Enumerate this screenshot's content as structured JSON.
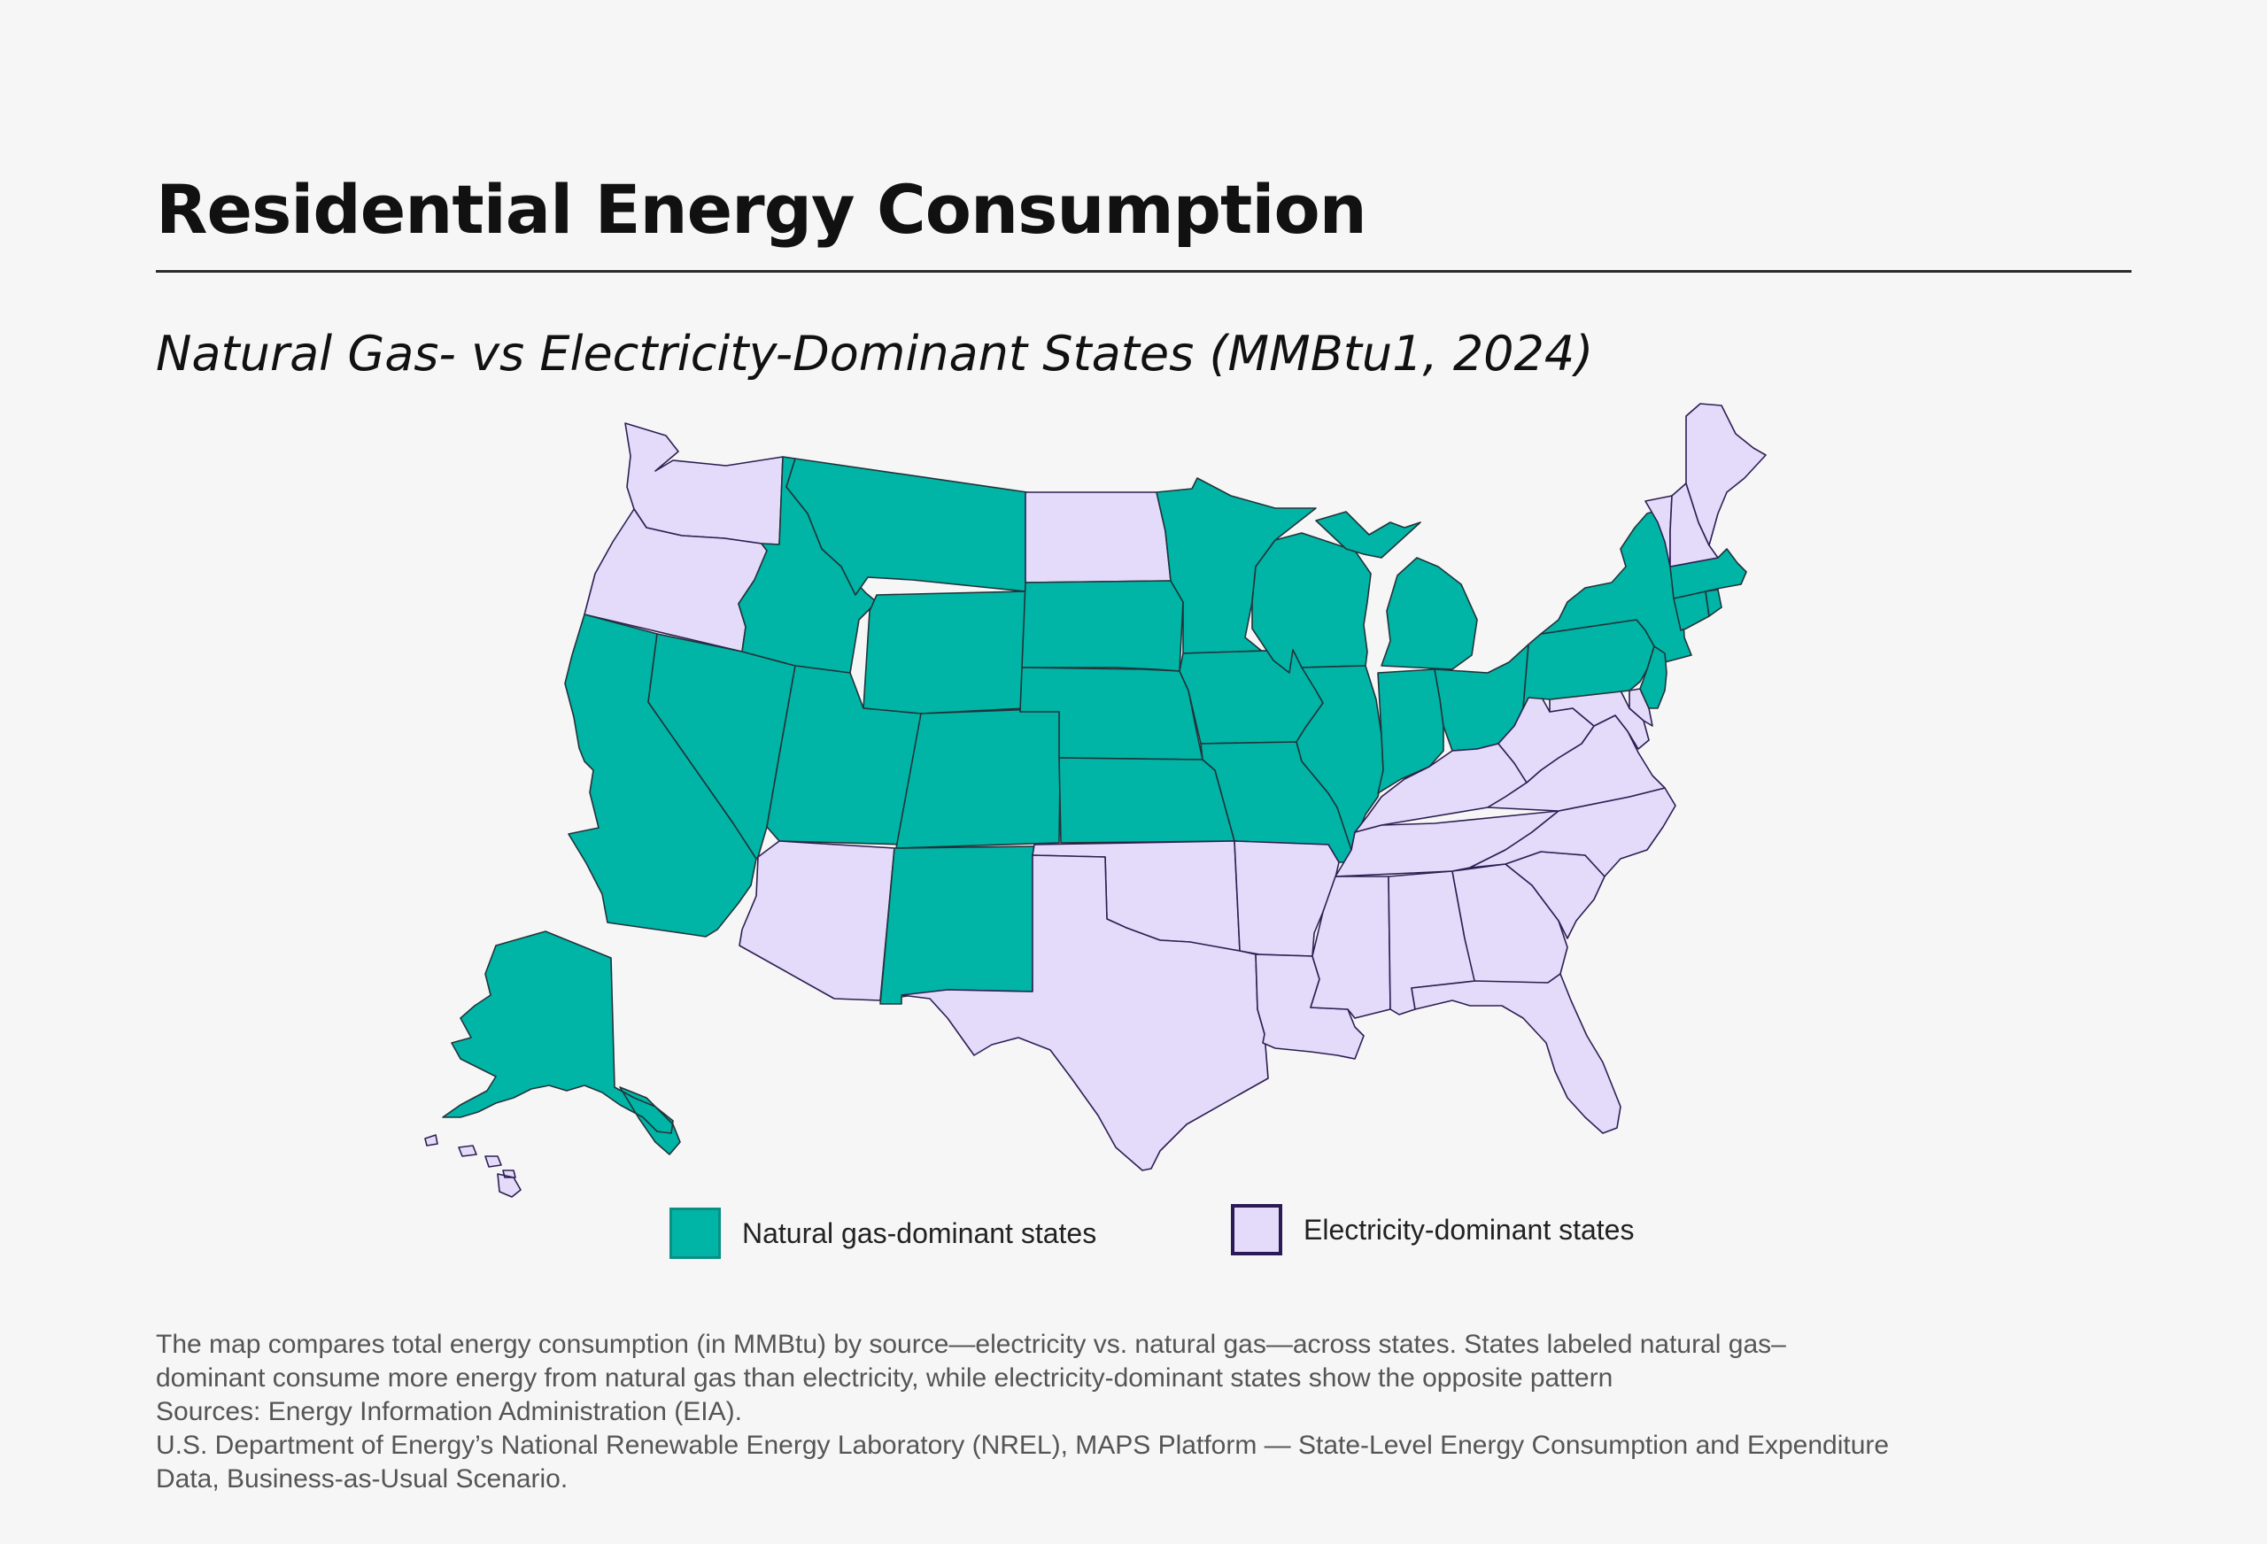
{
  "title": "Residential Energy Consumption",
  "subtitle": "Natural Gas- vs Electricity-Dominant States (MMBtu1, 2024)",
  "legend": [
    {
      "label": "Natural gas-dominant states",
      "category": "gas",
      "color": "#00b4a6"
    },
    {
      "label": "Electricity-dominant states",
      "category": "electricity",
      "color": "#e4dafa"
    }
  ],
  "notes": [
    "The map compares total energy consumption (in MMBtu) by source—electricity vs. natural gas—across states. States labeled natural gas–",
    "dominant consume more energy from natural gas than electricity, while electricity-dominant states show the opposite pattern",
    "Sources: Energy Information Administration (EIA).",
    "U.S. Department of Energy’s National Renewable Energy Laboratory (NREL), MAPS Platform — State-Level Energy Consumption and Expenditure",
    "Data, Business-as-Usual Scenario."
  ],
  "colors": {
    "gas": "#00b4a6",
    "electricity": "#e4dafa",
    "gas_stroke": "#22333a",
    "elec_stroke": "#2d1f52"
  },
  "states": {
    "gas": [
      "CA",
      "NV",
      "ID",
      "MT",
      "WY",
      "UT",
      "CO",
      "NM",
      "SD",
      "NE",
      "KS",
      "MN",
      "IA",
      "MO",
      "WI",
      "IL",
      "MI",
      "IN",
      "OH",
      "PA",
      "NY",
      "NJ",
      "CT",
      "MA",
      "RI",
      "AK"
    ],
    "electricity": [
      "WA",
      "OR",
      "AZ",
      "ND",
      "OK",
      "TX",
      "AR",
      "LA",
      "MS",
      "AL",
      "TN",
      "KY",
      "GA",
      "FL",
      "SC",
      "NC",
      "VA",
      "WV",
      "MD",
      "DE",
      "VT",
      "NH",
      "ME",
      "HI"
    ]
  }
}
